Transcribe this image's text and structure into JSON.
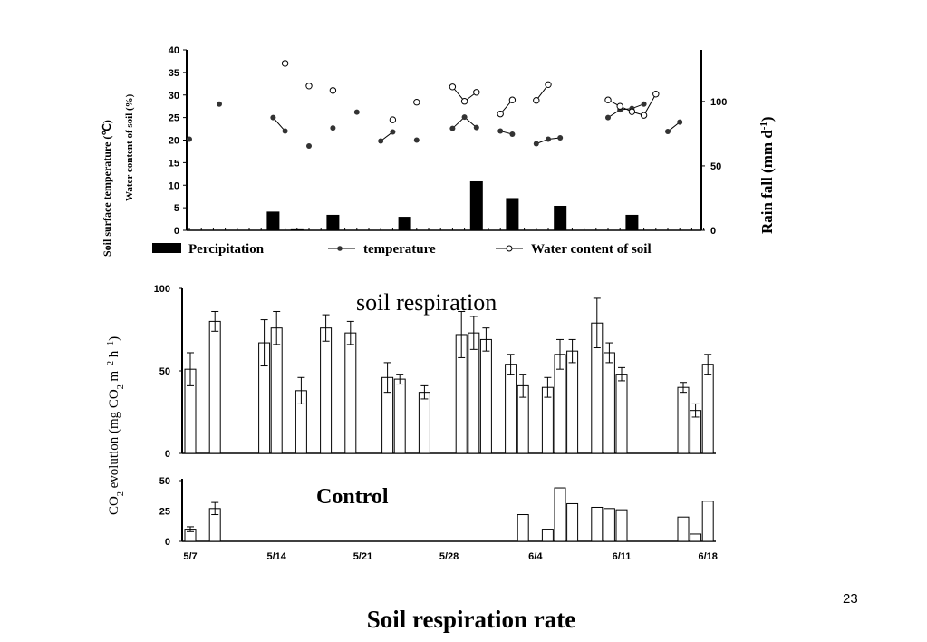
{
  "slide": {
    "number": "23",
    "title": "Soil respiration rate"
  },
  "chart_data": [
    {
      "type": "bar",
      "panel": "weather",
      "y_left_label_1": "Soil surface temperature (℃)",
      "y_left_label_2": "Water content of soil (%)",
      "y_right_label": "Rain fall (mm d",
      "y_right_label_sup": "-1",
      "y_right_label_close": ")",
      "y_left_range": [
        0,
        40
      ],
      "y_left_ticks": [
        "0",
        "5",
        "10",
        "15",
        "20",
        "25",
        "30",
        "35",
        "40"
      ],
      "y_right_range": [
        0,
        140
      ],
      "y_right_ticks": [
        "0",
        "50",
        "100"
      ],
      "legend": [
        "Percipitation",
        "temperature",
        "Water content of soil"
      ],
      "legend_placement": "bottom",
      "x_day_range": [
        0,
        43
      ],
      "series": [
        {
          "name": "Percipitation",
          "kind": "bar",
          "axis": "right",
          "points": [
            [
              7,
              14.5
            ],
            [
              9,
              1.5
            ],
            [
              12,
              12
            ],
            [
              18,
              10.5
            ],
            [
              24,
              38
            ],
            [
              27,
              25
            ],
            [
              31,
              19
            ],
            [
              37,
              12
            ]
          ]
        },
        {
          "name": "temperature",
          "kind": "line-marker",
          "axis": "left",
          "segments": [
            [
              [
                0,
                20.2
              ]
            ],
            [
              [
                2.5,
                28
              ]
            ],
            [
              [
                7,
                25
              ],
              [
                8,
                22
              ]
            ],
            [
              [
                10,
                18.7
              ]
            ],
            [
              [
                12,
                22.7
              ]
            ],
            [
              [
                14,
                26.2
              ]
            ],
            [
              [
                16,
                19.8
              ],
              [
                17,
                21.8
              ]
            ],
            [
              [
                19,
                20
              ]
            ],
            [
              [
                22,
                22.6
              ],
              [
                23,
                25.1
              ],
              [
                24,
                22.8
              ]
            ],
            [
              [
                26,
                22
              ],
              [
                27,
                21.3
              ]
            ],
            [
              [
                29,
                19.2
              ],
              [
                30,
                20.2
              ],
              [
                31,
                20.5
              ]
            ],
            [
              [
                35,
                25
              ],
              [
                36,
                26.7
              ],
              [
                37,
                27
              ],
              [
                38,
                28
              ]
            ],
            [
              [
                40,
                21.9
              ],
              [
                41,
                24
              ]
            ]
          ]
        },
        {
          "name": "Water content of soil",
          "kind": "line-marker",
          "axis": "left",
          "segments": [
            [
              [
                8,
                37
              ]
            ],
            [
              [
                10,
                32
              ]
            ],
            [
              [
                12,
                31
              ]
            ],
            [
              [
                17,
                24.5
              ]
            ],
            [
              [
                19,
                28.4
              ]
            ],
            [
              [
                22,
                31.8
              ],
              [
                23,
                28.6
              ],
              [
                24,
                30.6
              ]
            ],
            [
              [
                26,
                25.8
              ],
              [
                27,
                28.9
              ]
            ],
            [
              [
                29,
                28.8
              ],
              [
                30,
                32.3
              ]
            ],
            [
              [
                35,
                28.9
              ],
              [
                36,
                27.5
              ],
              [
                37,
                26.3
              ],
              [
                38,
                25.5
              ],
              [
                39,
                30.2
              ]
            ]
          ]
        }
      ]
    },
    {
      "type": "bar",
      "panel": "soil-respiration",
      "annotation": "soil respiration",
      "ylabel_pre": "CO",
      "ylabel_sub": "2",
      "ylabel_mid": " evolution  (mg CO",
      "ylabel_sub2": "2",
      "ylabel_mid2": " m",
      "ylabel_sup1": " -2",
      "ylabel_mid3": " h",
      "ylabel_sup2": " -1",
      "ylabel_end": ")",
      "ylim": [
        0,
        100
      ],
      "y_ticks": [
        "0",
        "50",
        "100"
      ],
      "x_day_range": [
        0,
        43
      ],
      "values": [
        [
          0,
          51,
          10
        ],
        [
          2,
          80,
          6
        ],
        [
          6,
          67,
          14
        ],
        [
          7,
          76,
          10
        ],
        [
          9,
          38,
          8
        ],
        [
          11,
          76,
          8
        ],
        [
          13,
          73,
          7
        ],
        [
          16,
          46,
          9
        ],
        [
          17,
          45,
          3
        ],
        [
          19,
          37,
          4
        ],
        [
          22,
          72,
          14
        ],
        [
          23,
          73,
          10
        ],
        [
          24,
          69,
          7
        ],
        [
          26,
          54,
          6
        ],
        [
          27,
          41,
          7
        ],
        [
          29,
          40,
          6
        ],
        [
          30,
          60,
          9
        ],
        [
          31,
          62,
          7
        ],
        [
          33,
          79,
          15
        ],
        [
          34,
          61,
          6
        ],
        [
          35,
          48,
          4
        ],
        [
          40,
          40,
          3
        ],
        [
          41,
          26,
          4
        ],
        [
          42,
          54,
          6
        ]
      ]
    },
    {
      "type": "bar",
      "panel": "control",
      "annotation": "Control",
      "ylim": [
        0,
        50
      ],
      "y_ticks": [
        "0",
        "25",
        "50"
      ],
      "x_day_range": [
        0,
        43
      ],
      "values": [
        [
          0,
          10,
          2
        ],
        [
          2,
          27,
          5
        ],
        [
          27,
          22,
          0
        ],
        [
          29,
          10,
          0
        ],
        [
          30,
          44,
          0
        ],
        [
          31,
          31,
          0
        ],
        [
          33,
          28,
          0
        ],
        [
          34,
          27,
          0
        ],
        [
          35,
          26,
          0
        ],
        [
          40,
          20,
          0
        ],
        [
          41,
          6,
          0
        ],
        [
          42,
          33,
          0
        ]
      ],
      "x_ticks": [
        "5/7",
        "5/14",
        "5/21",
        "5/28",
        "6/4",
        "6/11",
        "6/18"
      ],
      "x_tick_days": [
        0,
        7,
        14,
        21,
        28,
        35,
        42
      ]
    }
  ]
}
